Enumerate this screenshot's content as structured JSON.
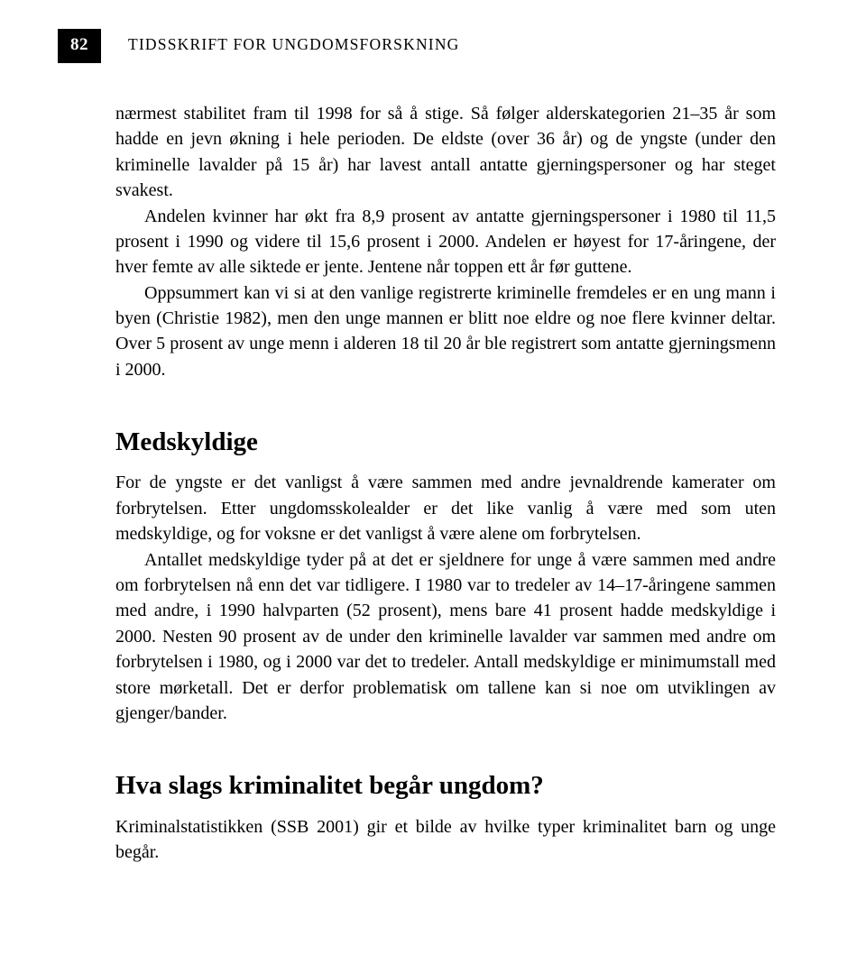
{
  "page_number": "82",
  "journal_title": "TIDSSKRIFT FOR UNGDOMSFORSKNING",
  "paragraphs": {
    "p1": "nærmest stabilitet fram til 1998 for så å stige. Så følger alderskategorien 21–35 år som hadde en jevn økning i hele perioden. De eldste (over 36 år) og de yngste (under den kriminelle lavalder på 15 år) har lavest antall antatte gjerningspersoner og har steget svakest.",
    "p2": "Andelen kvinner har økt fra 8,9 prosent av antatte gjerningspersoner i 1980 til 11,5 prosent i 1990 og videre til 15,6 prosent i 2000. Andelen er høyest for 17-åringene, der hver femte av alle siktede er jente. Jentene når toppen ett år før guttene.",
    "p3": "Oppsummert kan vi si at den vanlige registrerte kriminelle fremdeles er en ung mann i byen (Christie 1982), men den unge mannen er blitt noe eldre og noe flere kvinner deltar. Over 5 prosent av unge menn i alderen 18 til 20 år ble registrert som antatte gjerningsmenn i 2000."
  },
  "section1": {
    "heading": "Medskyldige",
    "p1": "For de yngste er det vanligst å være sammen med andre jevnaldrende kamerater om forbrytelsen. Etter ungdomsskolealder er det like vanlig å være med som uten medskyldige, og for voksne er det vanligst å være alene om forbrytelsen.",
    "p2": "Antallet medskyldige tyder på at det er sjeldnere for unge å være sammen med andre om forbrytelsen nå enn det var tidligere. I 1980 var to tredeler av 14–17-åringene sammen med andre, i 1990 halvparten (52 prosent), mens bare 41 prosent hadde medskyldige i 2000. Nesten 90 prosent av de under den kriminelle lavalder var sammen med andre om forbrytelsen i 1980, og i 2000 var det to tredeler. Antall medskyldige er minimumstall med store mørketall. Det er derfor problematisk om tallene kan si noe om utviklingen av gjenger/bander."
  },
  "section2": {
    "heading": "Hva slags kriminalitet begår ungdom?",
    "p1": "Kriminalstatistikken (SSB 2001) gir et bilde av hvilke typer kriminalitet barn og unge begår."
  }
}
